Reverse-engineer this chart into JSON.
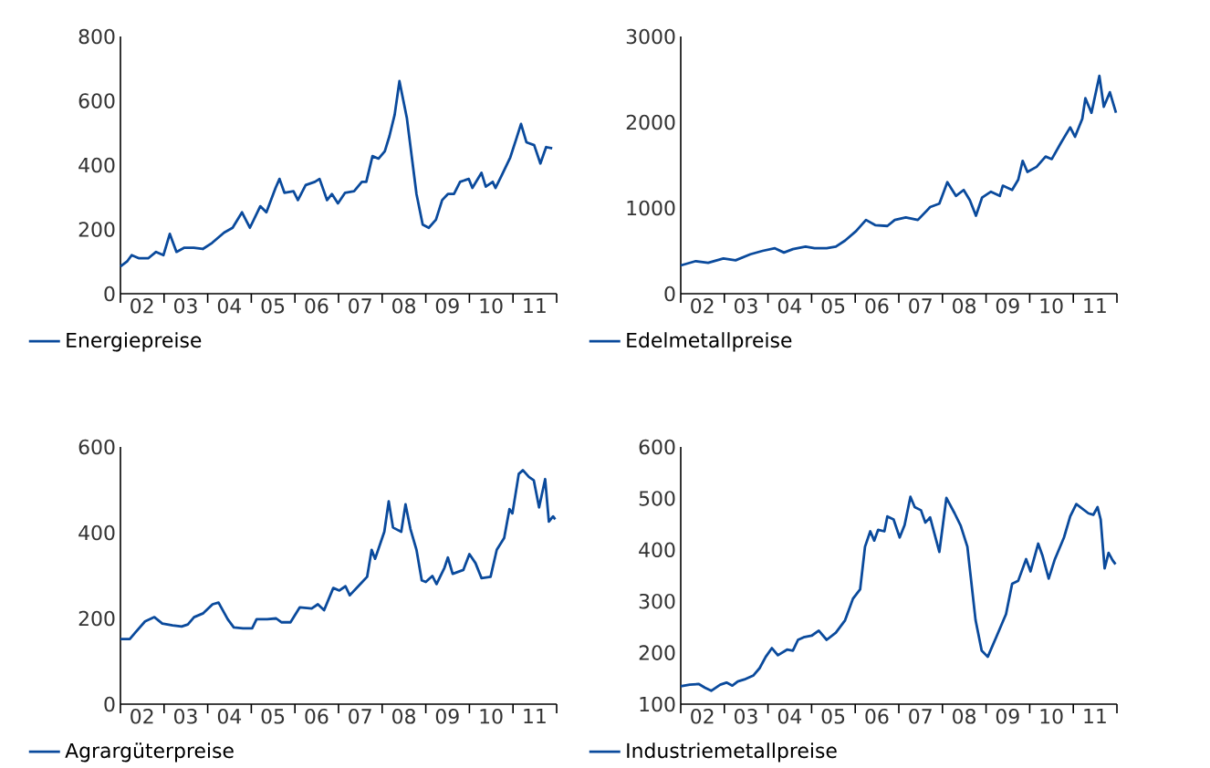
{
  "chart_data": [
    {
      "type": "line",
      "xlim": [
        "2002-01-01",
        "2012-01-01"
      ],
      "ylim": [
        0,
        800
      ],
      "yticks": [
        0,
        200,
        400,
        600,
        800
      ],
      "legend": "bottom left",
      "xticks": [
        {
          "value": "2002-01-01",
          "label": null
        },
        {
          "value": "2003-01-01",
          "label": null
        },
        {
          "value": "2004-01-01",
          "label": null
        },
        {
          "value": "2005-01-01",
          "label": null
        },
        {
          "value": "2006-01-01",
          "label": null
        },
        {
          "value": "2007-01-01",
          "label": null
        },
        {
          "value": "2008-01-01",
          "label": null
        },
        {
          "value": "2009-01-01",
          "label": null
        },
        {
          "value": "2010-01-01",
          "label": null
        },
        {
          "value": "2011-01-01",
          "label": null
        },
        {
          "value": "2012-01-01",
          "label": null
        },
        {
          "value": "2002-07-01",
          "label": "02"
        },
        {
          "value": "2003-07-01",
          "label": "03"
        },
        {
          "value": "2004-07-01",
          "label": "04"
        },
        {
          "value": "2005-07-01",
          "label": "05"
        },
        {
          "value": "2006-07-01",
          "label": "06"
        },
        {
          "value": "2007-07-01",
          "label": "07"
        },
        {
          "value": "2008-07-01",
          "label": "08"
        },
        {
          "value": "2009-07-01",
          "label": "09"
        },
        {
          "value": "2010-07-01",
          "label": "10"
        },
        {
          "value": "2011-07-01",
          "label": "11"
        }
      ],
      "series": [
        {
          "name": "Energiepreise",
          "color": "#0a4a9c",
          "x": [
            "2002-01-01",
            "2002-02-25",
            "2002-04-05",
            "2002-06-06",
            "2002-08-21",
            "2002-10-26",
            "2002-12-27",
            "2003-02-18",
            "2003-04-15",
            "2003-06-20",
            "2003-09-06",
            "2003-11-21",
            "2004-02-07",
            "2004-05-18",
            "2004-07-28",
            "2004-10-15",
            "2004-12-20",
            "2005-03-17",
            "2005-05-07",
            "2005-07-23",
            "2005-08-25",
            "2005-10-05",
            "2005-12-20",
            "2006-01-26",
            "2006-04-01",
            "2006-06-17",
            "2006-07-26",
            "2006-09-27",
            "2006-11-07",
            "2006-12-27",
            "2007-02-25",
            "2007-05-11",
            "2007-07-15",
            "2007-08-21",
            "2007-10-12",
            "2007-12-02",
            "2008-01-23",
            "2008-03-02",
            "2008-04-15",
            "2008-05-25",
            "2008-07-26",
            "2008-09-06",
            "2008-10-15",
            "2008-12-06",
            "2009-01-26",
            "2009-03-27",
            "2009-05-18",
            "2009-07-05",
            "2009-08-25",
            "2009-10-15",
            "2009-12-27",
            "2010-01-26",
            "2010-04-12",
            "2010-05-18",
            "2010-07-15",
            "2010-08-07",
            "2010-09-27",
            "2010-12-09",
            "2011-01-28",
            "2011-03-09",
            "2011-04-23",
            "2011-06-27",
            "2011-08-18",
            "2011-10-05",
            "2011-11-25"
          ],
          "values": [
            85,
            100,
            120,
            110,
            110,
            130,
            120,
            186,
            130,
            143,
            143,
            139,
            158,
            190,
            205,
            253,
            205,
            272,
            253,
            329,
            357,
            314,
            319,
            291,
            338,
            348,
            357,
            291,
            310,
            281,
            314,
            319,
            348,
            348,
            428,
            420,
            443,
            490,
            557,
            661,
            547,
            424,
            310,
            215,
            205,
            230,
            291,
            310,
            310,
            348,
            357,
            329,
            376,
            333,
            348,
            329,
            367,
            424,
            481,
            528,
            471,
            462,
            405,
            456,
            452
          ]
        }
      ]
    },
    {
      "type": "line",
      "xlim": [
        "2002-01-01",
        "2012-01-01"
      ],
      "ylim": [
        0,
        3000
      ],
      "yticks": [
        0,
        1000,
        2000,
        3000
      ],
      "legend": "bottom left",
      "xticks": [
        {
          "value": "2002-01-01",
          "label": null
        },
        {
          "value": "2003-01-01",
          "label": null
        },
        {
          "value": "2004-01-01",
          "label": null
        },
        {
          "value": "2005-01-01",
          "label": null
        },
        {
          "value": "2006-01-01",
          "label": null
        },
        {
          "value": "2007-01-01",
          "label": null
        },
        {
          "value": "2008-01-01",
          "label": null
        },
        {
          "value": "2009-01-01",
          "label": null
        },
        {
          "value": "2010-01-01",
          "label": null
        },
        {
          "value": "2011-01-01",
          "label": null
        },
        {
          "value": "2012-01-01",
          "label": null
        },
        {
          "value": "2002-07-01",
          "label": "02"
        },
        {
          "value": "2003-07-01",
          "label": "03"
        },
        {
          "value": "2004-07-01",
          "label": "04"
        },
        {
          "value": "2005-07-01",
          "label": "05"
        },
        {
          "value": "2006-07-01",
          "label": "06"
        },
        {
          "value": "2007-07-01",
          "label": "07"
        },
        {
          "value": "2008-07-01",
          "label": "08"
        },
        {
          "value": "2009-07-01",
          "label": "09"
        },
        {
          "value": "2010-07-01",
          "label": "10"
        },
        {
          "value": "2011-07-01",
          "label": "11"
        }
      ],
      "series": [
        {
          "name": "Edelmetallpreise",
          "color": "#0a4a9c",
          "x": [
            "2002-01-01",
            "2002-05-07",
            "2002-08-18",
            "2002-12-24",
            "2003-04-05",
            "2003-08-07",
            "2003-11-18",
            "2004-02-28",
            "2004-05-14",
            "2004-07-28",
            "2004-11-11",
            "2005-01-26",
            "2005-05-07",
            "2005-07-23",
            "2005-10-08",
            "2006-01-08",
            "2006-04-01",
            "2006-06-17",
            "2006-09-27",
            "2006-11-28",
            "2007-02-28",
            "2007-06-09",
            "2007-09-20",
            "2007-12-06",
            "2008-02-11",
            "2008-04-23",
            "2008-06-27",
            "2008-08-18",
            "2008-10-08",
            "2008-11-28",
            "2009-02-11",
            "2009-04-26",
            "2009-05-21",
            "2009-08-07",
            "2009-09-27",
            "2009-11-03",
            "2009-12-13",
            "2010-02-28",
            "2010-05-14",
            "2010-07-05",
            "2010-09-20",
            "2010-12-06",
            "2011-01-15",
            "2011-03-17",
            "2011-04-12",
            "2011-06-02",
            "2011-08-07",
            "2011-09-13",
            "2011-11-03",
            "2011-12-24"
          ],
          "values": [
            330,
            380,
            360,
            410,
            390,
            460,
            500,
            530,
            480,
            520,
            550,
            530,
            530,
            550,
            620,
            730,
            860,
            800,
            790,
            860,
            890,
            860,
            1010,
            1050,
            1300,
            1140,
            1210,
            1090,
            910,
            1120,
            1190,
            1140,
            1260,
            1210,
            1330,
            1550,
            1420,
            1480,
            1600,
            1570,
            1760,
            1940,
            1830,
            2040,
            2280,
            2110,
            2540,
            2180,
            2350,
            2110
          ]
        }
      ]
    },
    {
      "type": "line",
      "xlim": [
        "2002-01-01",
        "2012-01-01"
      ],
      "ylim": [
        0,
        600
      ],
      "yticks": [
        0,
        200,
        400,
        600
      ],
      "legend": "bottom left",
      "xticks": [
        {
          "value": "2002-01-01",
          "label": null
        },
        {
          "value": "2003-01-01",
          "label": null
        },
        {
          "value": "2004-01-01",
          "label": null
        },
        {
          "value": "2005-01-01",
          "label": null
        },
        {
          "value": "2006-01-01",
          "label": null
        },
        {
          "value": "2007-01-01",
          "label": null
        },
        {
          "value": "2008-01-01",
          "label": null
        },
        {
          "value": "2009-01-01",
          "label": null
        },
        {
          "value": "2010-01-01",
          "label": null
        },
        {
          "value": "2011-01-01",
          "label": null
        },
        {
          "value": "2012-01-01",
          "label": null
        },
        {
          "value": "2002-07-01",
          "label": "02"
        },
        {
          "value": "2003-07-01",
          "label": "03"
        },
        {
          "value": "2004-07-01",
          "label": "04"
        },
        {
          "value": "2005-07-01",
          "label": "05"
        },
        {
          "value": "2006-07-01",
          "label": "06"
        },
        {
          "value": "2007-07-01",
          "label": "07"
        },
        {
          "value": "2008-07-01",
          "label": "08"
        },
        {
          "value": "2009-07-01",
          "label": "09"
        },
        {
          "value": "2010-07-01",
          "label": "10"
        },
        {
          "value": "2011-07-01",
          "label": "11"
        }
      ],
      "series": [
        {
          "name": "Agrargüterpreise",
          "color": "#0a4a9c",
          "x": [
            "2002-01-01",
            "2002-03-20",
            "2002-05-11",
            "2002-07-26",
            "2002-10-12",
            "2002-12-17",
            "2003-03-13",
            "2003-05-28",
            "2003-07-19",
            "2003-09-09",
            "2003-11-25",
            "2004-02-11",
            "2004-04-01",
            "2004-06-17",
            "2004-08-07",
            "2004-10-23",
            "2005-01-08",
            "2005-02-14",
            "2005-05-14",
            "2005-07-28",
            "2005-09-09",
            "2005-11-25",
            "2006-02-11",
            "2006-05-21",
            "2006-07-12",
            "2006-09-02",
            "2006-11-18",
            "2007-01-08",
            "2007-02-28",
            "2007-04-05",
            "2007-07-08",
            "2007-08-28",
            "2007-10-05",
            "2007-11-03",
            "2008-01-19",
            "2008-02-25",
            "2008-04-01",
            "2008-06-09",
            "2008-07-15",
            "2008-08-25",
            "2008-10-15",
            "2008-11-28",
            "2009-01-01",
            "2009-02-25",
            "2009-04-01",
            "2009-06-06",
            "2009-07-05",
            "2009-08-14",
            "2009-11-11",
            "2010-01-01",
            "2010-02-21",
            "2010-04-12",
            "2010-06-27",
            "2010-08-18",
            "2010-10-19",
            "2010-12-02",
            "2010-12-27",
            "2011-02-18",
            "2011-03-24",
            "2011-05-14",
            "2011-06-24",
            "2011-08-07",
            "2011-09-27",
            "2011-10-28",
            "2011-12-02",
            "2011-12-20"
          ],
          "values": [
            152,
            152,
            169,
            193,
            203,
            188,
            184,
            181,
            186,
            203,
            212,
            233,
            237,
            198,
            179,
            177,
            177,
            198,
            198,
            200,
            191,
            191,
            226,
            223,
            233,
            219,
            271,
            265,
            275,
            254,
            282,
            297,
            360,
            339,
            402,
            473,
            412,
            402,
            466,
            409,
            360,
            289,
            285,
            299,
            280,
            318,
            342,
            304,
            313,
            350,
            329,
            294,
            297,
            360,
            388,
            455,
            445,
            537,
            546,
            530,
            522,
            459,
            525,
            426,
            438,
            431
          ]
        }
      ]
    },
    {
      "type": "line",
      "xlim": [
        "2002-01-01",
        "2012-01-01"
      ],
      "ylim": [
        100,
        600
      ],
      "yticks": [
        100,
        200,
        300,
        400,
        500,
        600
      ],
      "legend": "bottom left",
      "xticks": [
        {
          "value": "2002-01-01",
          "label": null
        },
        {
          "value": "2003-01-01",
          "label": null
        },
        {
          "value": "2004-01-01",
          "label": null
        },
        {
          "value": "2005-01-01",
          "label": null
        },
        {
          "value": "2006-01-01",
          "label": null
        },
        {
          "value": "2007-01-01",
          "label": null
        },
        {
          "value": "2008-01-01",
          "label": null
        },
        {
          "value": "2009-01-01",
          "label": null
        },
        {
          "value": "2010-01-01",
          "label": null
        },
        {
          "value": "2011-01-01",
          "label": null
        },
        {
          "value": "2012-01-01",
          "label": null
        },
        {
          "value": "2002-07-01",
          "label": "02"
        },
        {
          "value": "2003-07-01",
          "label": "03"
        },
        {
          "value": "2004-07-01",
          "label": "04"
        },
        {
          "value": "2005-07-01",
          "label": "05"
        },
        {
          "value": "2006-07-01",
          "label": "06"
        },
        {
          "value": "2007-07-01",
          "label": "07"
        },
        {
          "value": "2008-07-01",
          "label": "08"
        },
        {
          "value": "2009-07-01",
          "label": "09"
        },
        {
          "value": "2010-07-01",
          "label": "10"
        },
        {
          "value": "2011-07-01",
          "label": "11"
        }
      ],
      "series": [
        {
          "name": "Industriemetallpreise",
          "color": "#0a4a9c",
          "x": [
            "2002-01-01",
            "2002-03-17",
            "2002-06-02",
            "2002-07-23",
            "2002-09-13",
            "2002-11-28",
            "2003-01-19",
            "2003-03-09",
            "2003-04-23",
            "2003-06-17",
            "2003-09-02",
            "2003-10-23",
            "2003-12-13",
            "2004-02-03",
            "2004-03-24",
            "2004-06-09",
            "2004-07-28",
            "2004-09-09",
            "2004-10-26",
            "2005-01-01",
            "2005-03-02",
            "2005-05-07",
            "2005-07-23",
            "2005-10-08",
            "2005-12-13",
            "2006-02-11",
            "2006-03-24",
            "2006-05-07",
            "2006-06-09",
            "2006-07-12",
            "2006-09-02",
            "2006-09-27",
            "2006-11-18",
            "2007-01-08",
            "2007-02-18",
            "2007-04-08",
            "2007-05-14",
            "2007-07-05",
            "2007-08-11",
            "2007-09-20",
            "2007-12-06",
            "2008-02-03",
            "2008-04-12",
            "2008-06-02",
            "2008-07-28",
            "2008-10-05",
            "2008-11-25",
            "2009-01-15",
            "2009-04-01",
            "2009-06-17",
            "2009-08-07",
            "2009-09-27",
            "2009-12-02",
            "2010-01-08",
            "2010-03-13",
            "2010-04-19",
            "2010-06-09",
            "2010-07-28",
            "2010-10-15",
            "2010-12-06",
            "2011-01-26",
            "2011-05-07",
            "2011-06-17",
            "2011-07-23",
            "2011-08-18",
            "2011-09-20",
            "2011-10-23",
            "2011-11-25",
            "2011-12-20"
          ],
          "values": [
            135,
            138,
            139,
            132,
            126,
            138,
            142,
            136,
            144,
            148,
            156,
            170,
            192,
            209,
            195,
            206,
            204,
            225,
            230,
            233,
            243,
            225,
            239,
            263,
            305,
            323,
            406,
            436,
            418,
            439,
            436,
            465,
            459,
            424,
            448,
            503,
            483,
            477,
            453,
            463,
            396,
            501,
            471,
            447,
            406,
            263,
            204,
            192,
            233,
            275,
            334,
            340,
            382,
            358,
            412,
            388,
            344,
            380,
            424,
            465,
            489,
            471,
            468,
            483,
            459,
            364,
            394,
            380,
            372
          ]
        }
      ]
    }
  ]
}
